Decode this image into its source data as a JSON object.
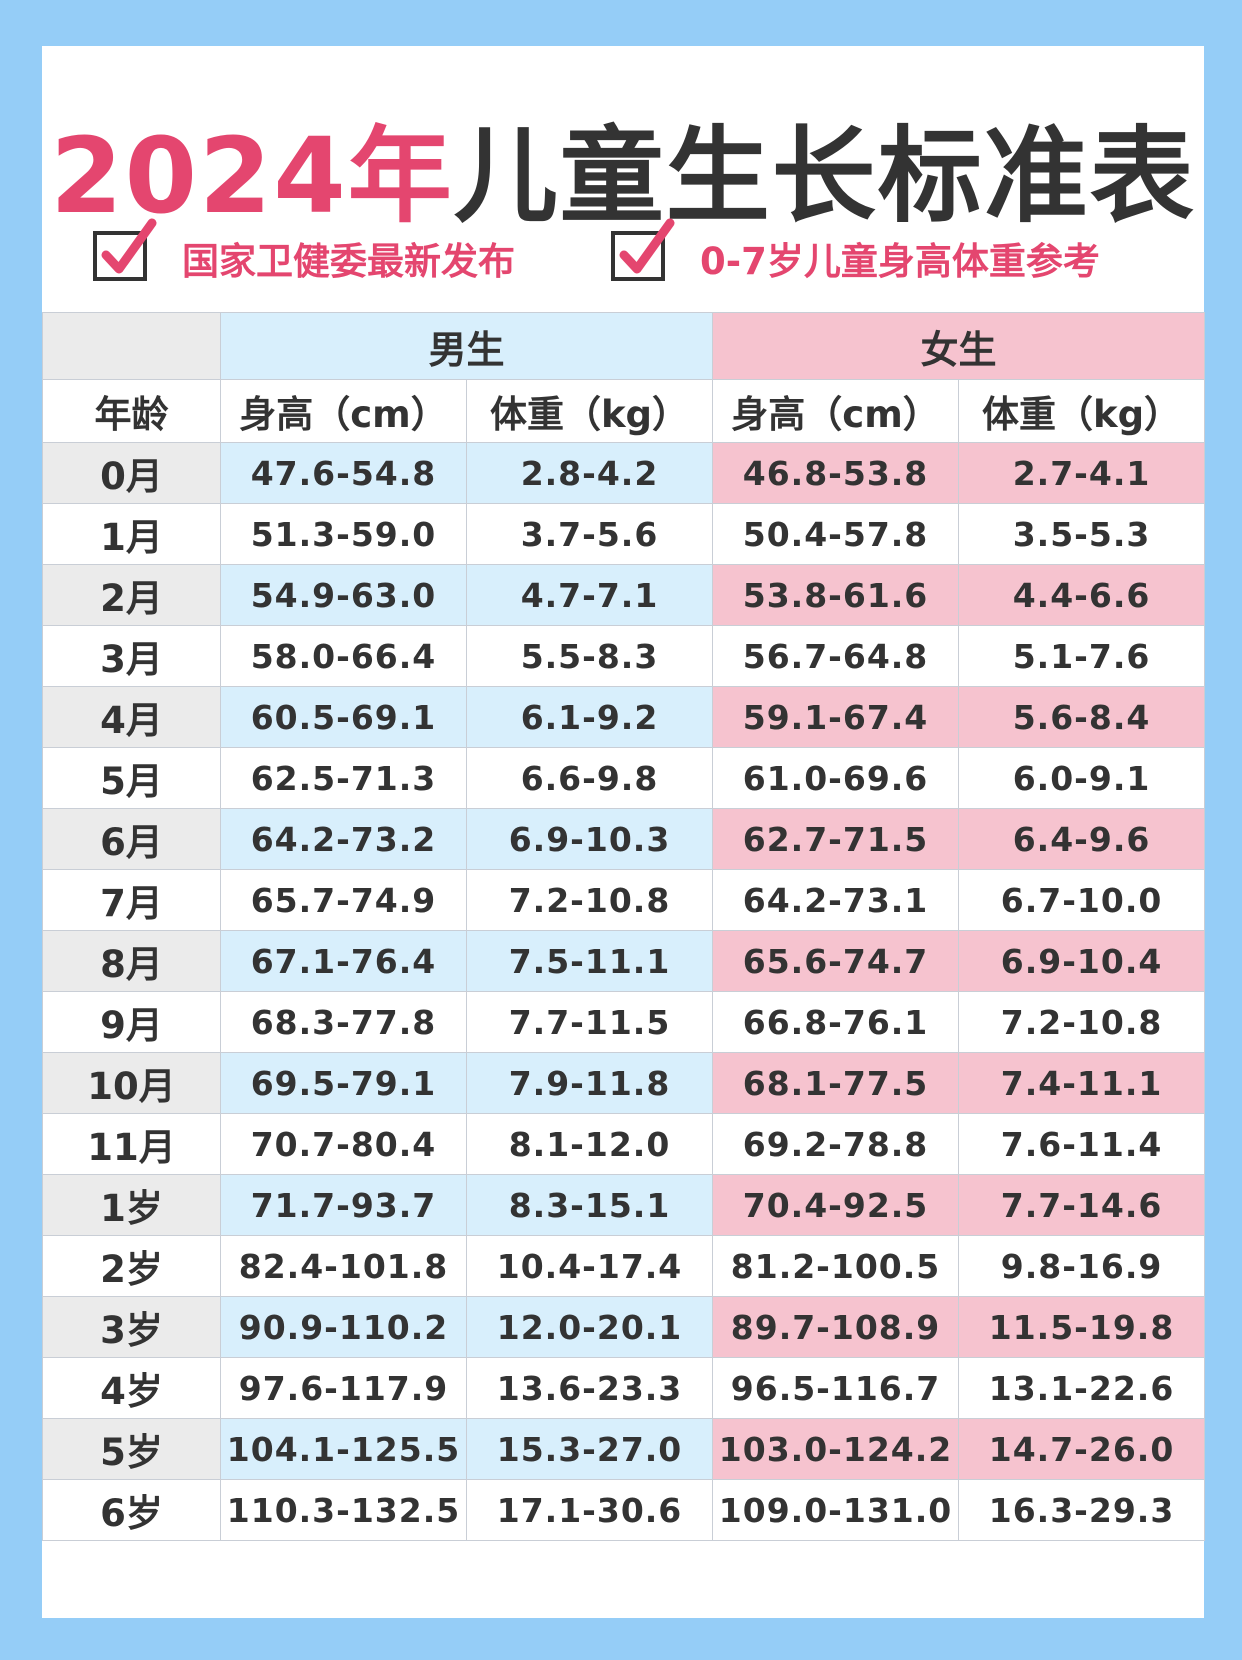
{
  "title": {
    "year": "2024年",
    "rest": "儿童生长标准表"
  },
  "subtitles": [
    {
      "icon": "checkbox-checked-icon",
      "text": "国家卫健委最新发布"
    },
    {
      "icon": "checkbox-checked-icon",
      "text": "0-7岁儿童身高体重参考"
    }
  ],
  "colors": {
    "accent": "#e4466f",
    "boys_fill": "#d8effc",
    "girls_fill": "#f6c3cf",
    "background": "#95cdf7"
  },
  "table": {
    "group_headers": {
      "boys": "男生",
      "girls": "女生"
    },
    "column_headers": {
      "age": "年龄",
      "boys_height": "身高（cm）",
      "boys_weight": "体重（kg）",
      "girls_height": "身高（cm）",
      "girls_weight": "体重（kg）"
    },
    "rows": [
      {
        "age": "0月",
        "boys_height": "47.6-54.8",
        "boys_weight": "2.8-4.2",
        "girls_height": "46.8-53.8",
        "girls_weight": "2.7-4.1"
      },
      {
        "age": "1月",
        "boys_height": "51.3-59.0",
        "boys_weight": "3.7-5.6",
        "girls_height": "50.4-57.8",
        "girls_weight": "3.5-5.3"
      },
      {
        "age": "2月",
        "boys_height": "54.9-63.0",
        "boys_weight": "4.7-7.1",
        "girls_height": "53.8-61.6",
        "girls_weight": "4.4-6.6"
      },
      {
        "age": "3月",
        "boys_height": "58.0-66.4",
        "boys_weight": "5.5-8.3",
        "girls_height": "56.7-64.8",
        "girls_weight": "5.1-7.6"
      },
      {
        "age": "4月",
        "boys_height": "60.5-69.1",
        "boys_weight": "6.1-9.2",
        "girls_height": "59.1-67.4",
        "girls_weight": "5.6-8.4"
      },
      {
        "age": "5月",
        "boys_height": "62.5-71.3",
        "boys_weight": "6.6-9.8",
        "girls_height": "61.0-69.6",
        "girls_weight": "6.0-9.1"
      },
      {
        "age": "6月",
        "boys_height": "64.2-73.2",
        "boys_weight": "6.9-10.3",
        "girls_height": "62.7-71.5",
        "girls_weight": "6.4-9.6"
      },
      {
        "age": "7月",
        "boys_height": "65.7-74.9",
        "boys_weight": "7.2-10.8",
        "girls_height": "64.2-73.1",
        "girls_weight": "6.7-10.0"
      },
      {
        "age": "8月",
        "boys_height": "67.1-76.4",
        "boys_weight": "7.5-11.1",
        "girls_height": "65.6-74.7",
        "girls_weight": "6.9-10.4"
      },
      {
        "age": "9月",
        "boys_height": "68.3-77.8",
        "boys_weight": "7.7-11.5",
        "girls_height": "66.8-76.1",
        "girls_weight": "7.2-10.8"
      },
      {
        "age": "10月",
        "boys_height": "69.5-79.1",
        "boys_weight": "7.9-11.8",
        "girls_height": "68.1-77.5",
        "girls_weight": "7.4-11.1"
      },
      {
        "age": "11月",
        "boys_height": "70.7-80.4",
        "boys_weight": "8.1-12.0",
        "girls_height": "69.2-78.8",
        "girls_weight": "7.6-11.4"
      },
      {
        "age": "1岁",
        "boys_height": "71.7-93.7",
        "boys_weight": "8.3-15.1",
        "girls_height": "70.4-92.5",
        "girls_weight": "7.7-14.6"
      },
      {
        "age": "2岁",
        "boys_height": "82.4-101.8",
        "boys_weight": "10.4-17.4",
        "girls_height": "81.2-100.5",
        "girls_weight": "9.8-16.9"
      },
      {
        "age": "3岁",
        "boys_height": "90.9-110.2",
        "boys_weight": "12.0-20.1",
        "girls_height": "89.7-108.9",
        "girls_weight": "11.5-19.8"
      },
      {
        "age": "4岁",
        "boys_height": "97.6-117.9",
        "boys_weight": "13.6-23.3",
        "girls_height": "96.5-116.7",
        "girls_weight": "13.1-22.6"
      },
      {
        "age": "5岁",
        "boys_height": "104.1-125.5",
        "boys_weight": "15.3-27.0",
        "girls_height": "103.0-124.2",
        "girls_weight": "14.7-26.0"
      },
      {
        "age": "6岁",
        "boys_height": "110.3-132.5",
        "boys_weight": "17.1-30.6",
        "girls_height": "109.0-131.0",
        "girls_weight": "16.3-29.3"
      }
    ]
  }
}
